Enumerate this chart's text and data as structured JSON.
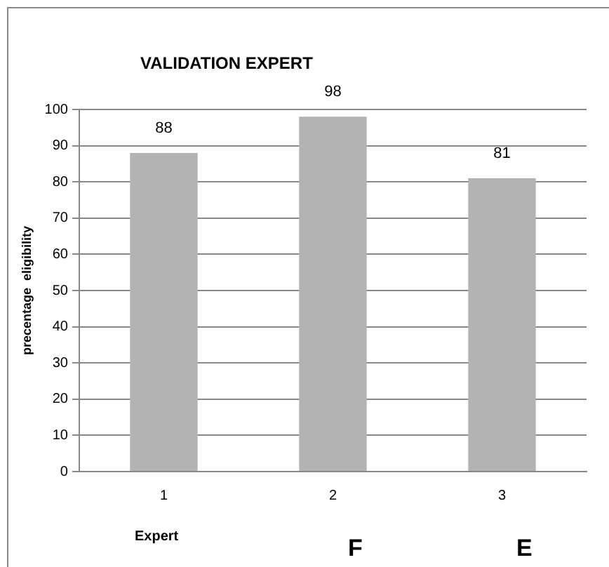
{
  "chart_data": {
    "type": "bar",
    "title": "VALIDATION EXPERT",
    "xlabel": "Expert",
    "ylabel": "precentage  eligibility",
    "categories": [
      "1",
      "2",
      "3"
    ],
    "values": [
      88,
      98,
      81
    ],
    "color": "#b3b3b3",
    "ylim": [
      0,
      100
    ],
    "yticks": [
      0,
      10,
      20,
      30,
      40,
      50,
      60,
      70,
      80,
      90,
      100
    ],
    "grid": "y",
    "data_labels": true,
    "legend": false,
    "annotations": [
      "F",
      "E"
    ]
  }
}
